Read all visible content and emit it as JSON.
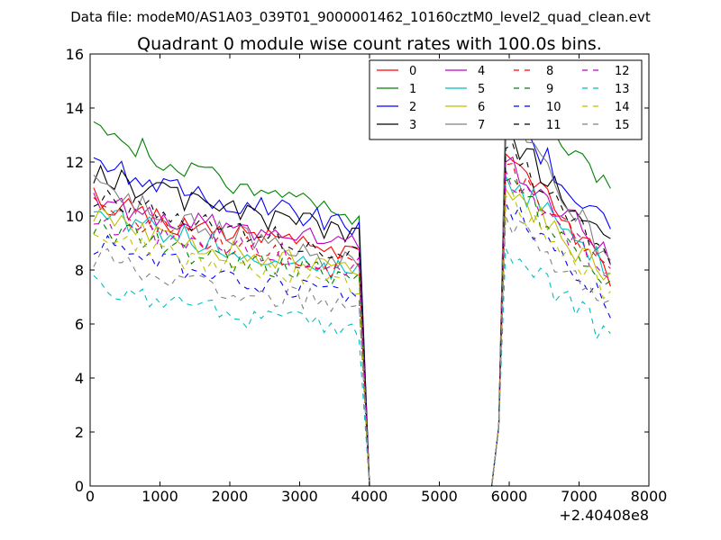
{
  "chart_data": {
    "type": "line",
    "suptitle": "Data file: modeM0/AS1A03_039T01_9000001462_10160cztM0_level2_quad_clean.evt",
    "title": "Quadrant 0 module wise count rates with 100.0s bins.",
    "xlabel": "",
    "ylabel": "",
    "x_offset_label": "+2.40408e8",
    "xlim": [
      0,
      8000
    ],
    "ylim": [
      0,
      16
    ],
    "xticks": [
      "0",
      "1000",
      "2000",
      "3000",
      "4000",
      "5000",
      "6000",
      "7000",
      "8000"
    ],
    "yticks": [
      "0",
      "2",
      "4",
      "6",
      "8",
      "10",
      "12",
      "14",
      "16"
    ],
    "legend_position": "upper-right",
    "series": [
      {
        "name": "0",
        "color": "#ff0000",
        "dash": "solid",
        "base1": 10.6,
        "end1": 8.5,
        "base2": 12.3,
        "end2": 7.8,
        "seed": 11
      },
      {
        "name": "1",
        "color": "#008000",
        "dash": "solid",
        "base1": 13.2,
        "end1": 10.1,
        "base2": 14.3,
        "end2": 11.0,
        "seed": 23
      },
      {
        "name": "2",
        "color": "#0000ff",
        "dash": "solid",
        "base1": 11.9,
        "end1": 9.7,
        "base2": 13.7,
        "end2": 9.5,
        "seed": 37
      },
      {
        "name": "3",
        "color": "#000000",
        "dash": "solid",
        "base1": 11.6,
        "end1": 9.3,
        "base2": 13.1,
        "end2": 9.0,
        "seed": 41
      },
      {
        "name": "4",
        "color": "#bf00bf",
        "dash": "solid",
        "base1": 10.5,
        "end1": 8.9,
        "base2": 12.0,
        "end2": 8.6,
        "seed": 53
      },
      {
        "name": "5",
        "color": "#00bfbf",
        "dash": "solid",
        "base1": 10.2,
        "end1": 8.0,
        "base2": 11.5,
        "end2": 8.0,
        "seed": 61
      },
      {
        "name": "6",
        "color": "#bfbf00",
        "dash": "solid",
        "base1": 10.0,
        "end1": 7.9,
        "base2": 11.0,
        "end2": 7.6,
        "seed": 73
      },
      {
        "name": "7",
        "color": "#808080",
        "dash": "solid",
        "base1": 11.1,
        "end1": 8.2,
        "base2": 14.1,
        "end2": 8.2,
        "seed": 83
      },
      {
        "name": "8",
        "color": "#ff0000",
        "dash": "dashed",
        "base1": 10.3,
        "end1": 8.1,
        "base2": 11.9,
        "end2": 7.9,
        "seed": 97
      },
      {
        "name": "9",
        "color": "#008000",
        "dash": "dashed",
        "base1": 9.6,
        "end1": 7.6,
        "base2": 11.3,
        "end2": 7.3,
        "seed": 101
      },
      {
        "name": "10",
        "color": "#0000ff",
        "dash": "dashed",
        "base1": 9.0,
        "end1": 7.0,
        "base2": 10.5,
        "end2": 6.5,
        "seed": 113
      },
      {
        "name": "11",
        "color": "#000000",
        "dash": "dashed",
        "base1": 10.8,
        "end1": 8.7,
        "base2": 12.5,
        "end2": 8.5,
        "seed": 127
      },
      {
        "name": "12",
        "color": "#bf00bf",
        "dash": "dashed",
        "base1": 9.9,
        "end1": 8.2,
        "base2": 11.7,
        "end2": 7.8,
        "seed": 131
      },
      {
        "name": "13",
        "color": "#00bfbf",
        "dash": "dashed",
        "base1": 7.5,
        "end1": 5.7,
        "base2": 8.8,
        "end2": 5.5,
        "seed": 139
      },
      {
        "name": "14",
        "color": "#bfbf00",
        "dash": "dashed",
        "base1": 9.3,
        "end1": 7.4,
        "base2": 10.7,
        "end2": 7.2,
        "seed": 149
      },
      {
        "name": "15",
        "color": "#808080",
        "dash": "dashed",
        "base1": 8.5,
        "end1": 6.6,
        "base2": 10.0,
        "end2": 6.6,
        "seed": 157
      }
    ],
    "segments": {
      "seg1_x": [
        50,
        3800
      ],
      "drop_x": 4000,
      "rise_start_x": 5750,
      "seg2_x": [
        5950,
        7400
      ],
      "step": 100
    }
  }
}
